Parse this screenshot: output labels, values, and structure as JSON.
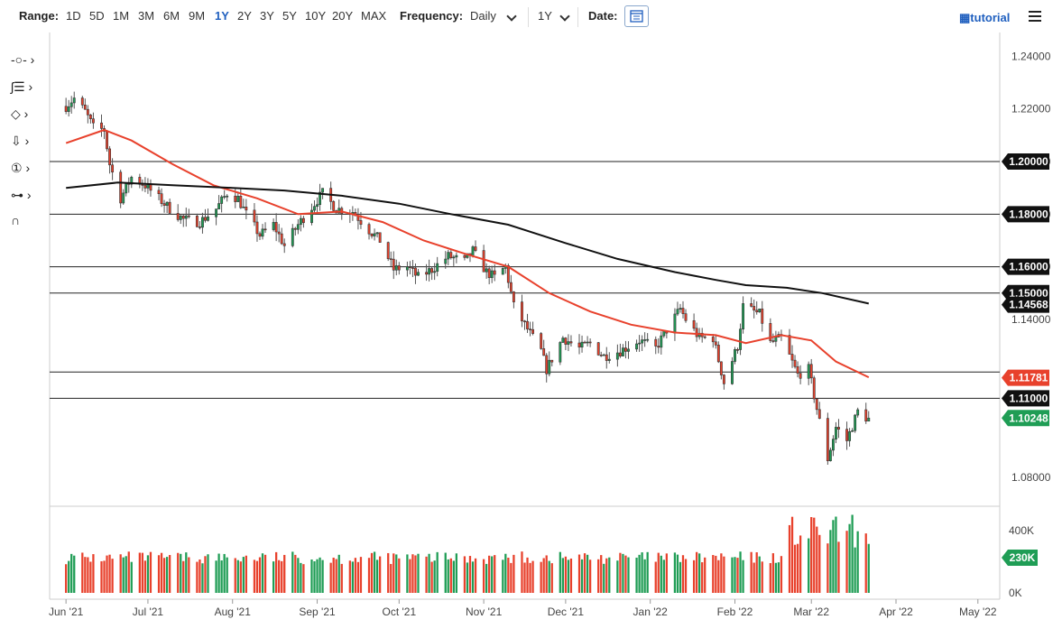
{
  "toolbar": {
    "range_label": "Range:",
    "ranges": [
      "1D",
      "5D",
      "1M",
      "3M",
      "6M",
      "9M",
      "1Y",
      "2Y",
      "3Y",
      "5Y",
      "10Y",
      "20Y",
      "MAX"
    ],
    "active_range": "1Y",
    "frequency_label": "Frequency:",
    "frequency_value": "Daily",
    "period_value": "1Y",
    "date_label": "Date:",
    "tutorial_label": "tutorial"
  },
  "colors": {
    "up": "#1f9d55",
    "down": "#e8412c",
    "ma_short": "#e8412c",
    "ma_long": "#111111",
    "price_badge": "#1f9d55",
    "ma_badge": "#e8412c",
    "accent": "#1f5fbf"
  },
  "chart_data": {
    "type": "candlestick",
    "instrument_note": "",
    "x_ticks": [
      "Jun '21",
      "Jul '21",
      "Aug '21",
      "Sep '21",
      "Oct '21",
      "Nov '21",
      "Dec '21",
      "Jan '22",
      "Feb '22",
      "Mar '22",
      "Apr '22",
      "May '22"
    ],
    "y_ticks": [
      "1.24000",
      "1.22000",
      "1.20000",
      "1.18000",
      "1.16000",
      "1.14000",
      "1.08000"
    ],
    "ylim": [
      1.07,
      1.247
    ],
    "horizontal_levels": [
      1.2,
      1.18,
      1.16,
      1.15,
      1.12,
      1.11
    ],
    "level_labels": [
      "1.20000",
      "1.18000",
      "1.16000",
      "1.15000",
      "1.11000"
    ],
    "last_price": "1.10248",
    "ma_short_last": "1.11781",
    "ma_long_last": "1.14568",
    "price_path": [
      [
        "2021-06-01",
        1.221
      ],
      [
        "2021-06-04",
        1.224
      ],
      [
        "2021-06-08",
        1.219
      ],
      [
        "2021-06-11",
        1.213
      ],
      [
        "2021-06-15",
        1.212
      ],
      [
        "2021-06-17",
        1.199
      ],
      [
        "2021-06-21",
        1.186
      ],
      [
        "2021-06-25",
        1.194
      ],
      [
        "2021-06-30",
        1.191
      ],
      [
        "2021-07-05",
        1.186
      ],
      [
        "2021-07-09",
        1.182
      ],
      [
        "2021-07-14",
        1.178
      ],
      [
        "2021-07-20",
        1.177
      ],
      [
        "2021-07-26",
        1.182
      ],
      [
        "2021-07-30",
        1.188
      ],
      [
        "2021-08-03",
        1.186
      ],
      [
        "2021-08-06",
        1.18
      ],
      [
        "2021-08-11",
        1.172
      ],
      [
        "2021-08-16",
        1.176
      ],
      [
        "2021-08-20",
        1.168
      ],
      [
        "2021-08-25",
        1.176
      ],
      [
        "2021-08-31",
        1.184
      ],
      [
        "2021-09-03",
        1.188
      ],
      [
        "2021-09-08",
        1.182
      ],
      [
        "2021-09-14",
        1.181
      ],
      [
        "2021-09-20",
        1.174
      ],
      [
        "2021-09-24",
        1.17
      ],
      [
        "2021-09-29",
        1.159
      ],
      [
        "2021-10-04",
        1.16
      ],
      [
        "2021-10-08",
        1.156
      ],
      [
        "2021-10-13",
        1.159
      ],
      [
        "2021-10-19",
        1.164
      ],
      [
        "2021-10-25",
        1.162
      ],
      [
        "2021-10-28",
        1.166
      ],
      [
        "2021-11-02",
        1.158
      ],
      [
        "2021-11-05",
        1.156
      ],
      [
        "2021-11-09",
        1.16
      ],
      [
        "2021-11-12",
        1.145
      ],
      [
        "2021-11-16",
        1.138
      ],
      [
        "2021-11-22",
        1.128
      ],
      [
        "2021-11-24",
        1.121
      ],
      [
        "2021-11-30",
        1.133
      ],
      [
        "2021-12-06",
        1.129
      ],
      [
        "2021-12-10",
        1.131
      ],
      [
        "2021-12-15",
        1.126
      ],
      [
        "2021-12-21",
        1.128
      ],
      [
        "2021-12-28",
        1.132
      ],
      [
        "2022-01-03",
        1.129
      ],
      [
        "2022-01-07",
        1.136
      ],
      [
        "2022-01-12",
        1.144
      ],
      [
        "2022-01-14",
        1.14
      ],
      [
        "2022-01-19",
        1.133
      ],
      [
        "2022-01-24",
        1.133
      ],
      [
        "2022-01-28",
        1.116
      ],
      [
        "2022-02-02",
        1.13
      ],
      [
        "2022-02-04",
        1.145
      ],
      [
        "2022-02-10",
        1.142
      ],
      [
        "2022-02-14",
        1.131
      ],
      [
        "2022-02-18",
        1.133
      ],
      [
        "2022-02-24",
        1.119
      ],
      [
        "2022-02-28",
        1.121
      ],
      [
        "2022-03-03",
        1.106
      ],
      [
        "2022-03-07",
        1.087
      ],
      [
        "2022-03-10",
        1.099
      ],
      [
        "2022-03-14",
        1.094
      ],
      [
        "2022-03-18",
        1.105
      ],
      [
        "2022-03-22",
        1.102
      ]
    ],
    "ma_short": [
      [
        "2021-06-01",
        1.207
      ],
      [
        "2021-06-15",
        1.212
      ],
      [
        "2021-06-25",
        1.208
      ],
      [
        "2021-07-10",
        1.199
      ],
      [
        "2021-07-25",
        1.191
      ],
      [
        "2021-08-10",
        1.186
      ],
      [
        "2021-08-25",
        1.18
      ],
      [
        "2021-09-10",
        1.181
      ],
      [
        "2021-09-25",
        1.177
      ],
      [
        "2021-10-10",
        1.17
      ],
      [
        "2021-10-25",
        1.165
      ],
      [
        "2021-11-10",
        1.16
      ],
      [
        "2021-11-25",
        1.15
      ],
      [
        "2021-12-10",
        1.143
      ],
      [
        "2021-12-25",
        1.138
      ],
      [
        "2022-01-10",
        1.135
      ],
      [
        "2022-01-25",
        1.134
      ],
      [
        "2022-02-05",
        1.131
      ],
      [
        "2022-02-18",
        1.134
      ],
      [
        "2022-03-01",
        1.132
      ],
      [
        "2022-03-10",
        1.124
      ],
      [
        "2022-03-22",
        1.118
      ]
    ],
    "ma_long": [
      [
        "2021-06-01",
        1.19
      ],
      [
        "2021-06-20",
        1.192
      ],
      [
        "2021-07-10",
        1.191
      ],
      [
        "2021-08-01",
        1.19
      ],
      [
        "2021-08-20",
        1.189
      ],
      [
        "2021-09-10",
        1.187
      ],
      [
        "2021-10-01",
        1.184
      ],
      [
        "2021-10-20",
        1.18
      ],
      [
        "2021-11-10",
        1.176
      ],
      [
        "2021-12-01",
        1.169
      ],
      [
        "2021-12-20",
        1.163
      ],
      [
        "2022-01-10",
        1.158
      ],
      [
        "2022-01-25",
        1.155
      ],
      [
        "2022-02-05",
        1.153
      ],
      [
        "2022-02-20",
        1.152
      ],
      [
        "2022-03-05",
        1.15
      ],
      [
        "2022-03-22",
        1.146
      ]
    ],
    "volume_ticks": [
      "400K",
      "0K"
    ],
    "last_volume": "230K"
  }
}
